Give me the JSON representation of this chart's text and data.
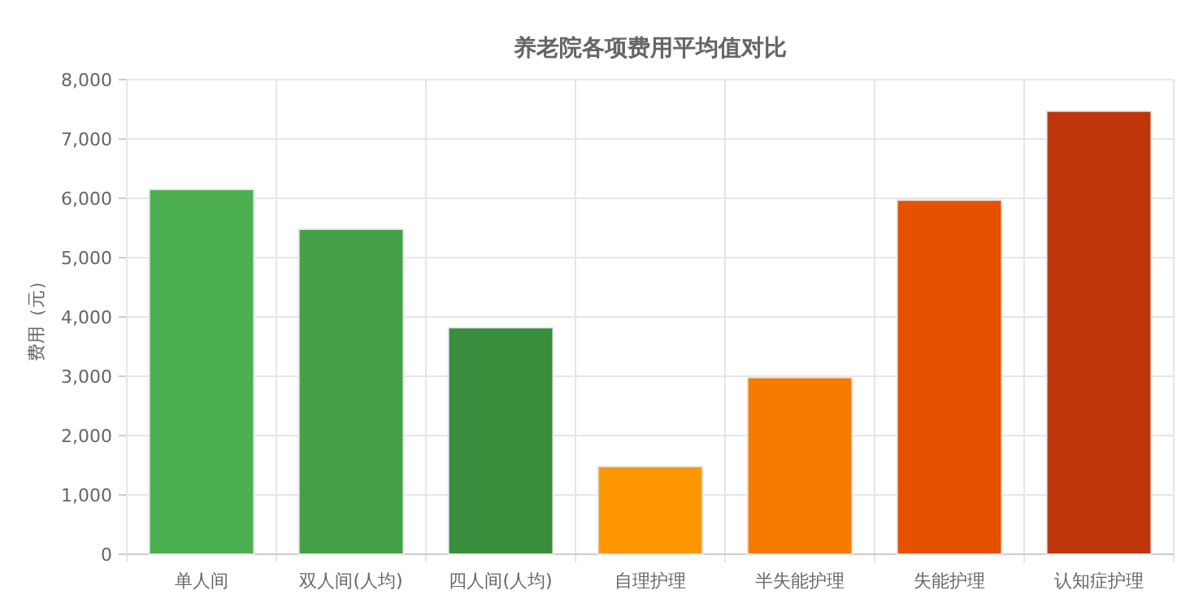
{
  "chart_data": {
    "type": "bar",
    "title": "养老院各项费用平均值对比",
    "ylabel": "费用（元）",
    "categories": [
      "单人间",
      "双人间(人均)",
      "四人间(人均)",
      "自理护理",
      "半失能护理",
      "失能护理",
      "认知症护理"
    ],
    "values": [
      6150,
      5480,
      3820,
      1480,
      2980,
      5970,
      7470
    ],
    "colors": [
      "#4caf50",
      "#43a047",
      "#388e3c",
      "#ff9800",
      "#f57c00",
      "#e65100",
      "#bf360c"
    ],
    "ylim": [
      0,
      8000
    ],
    "yticks": [
      {
        "value": 0,
        "label": "0"
      },
      {
        "value": 1000,
        "label": "1,000"
      },
      {
        "value": 2000,
        "label": "2,000"
      },
      {
        "value": 3000,
        "label": "3,000"
      },
      {
        "value": 4000,
        "label": "4,000"
      },
      {
        "value": 5000,
        "label": "5,000"
      },
      {
        "value": 6000,
        "label": "6,000"
      },
      {
        "value": 7000,
        "label": "7,000"
      },
      {
        "value": 8000,
        "label": "8,000"
      }
    ],
    "grid": true
  }
}
